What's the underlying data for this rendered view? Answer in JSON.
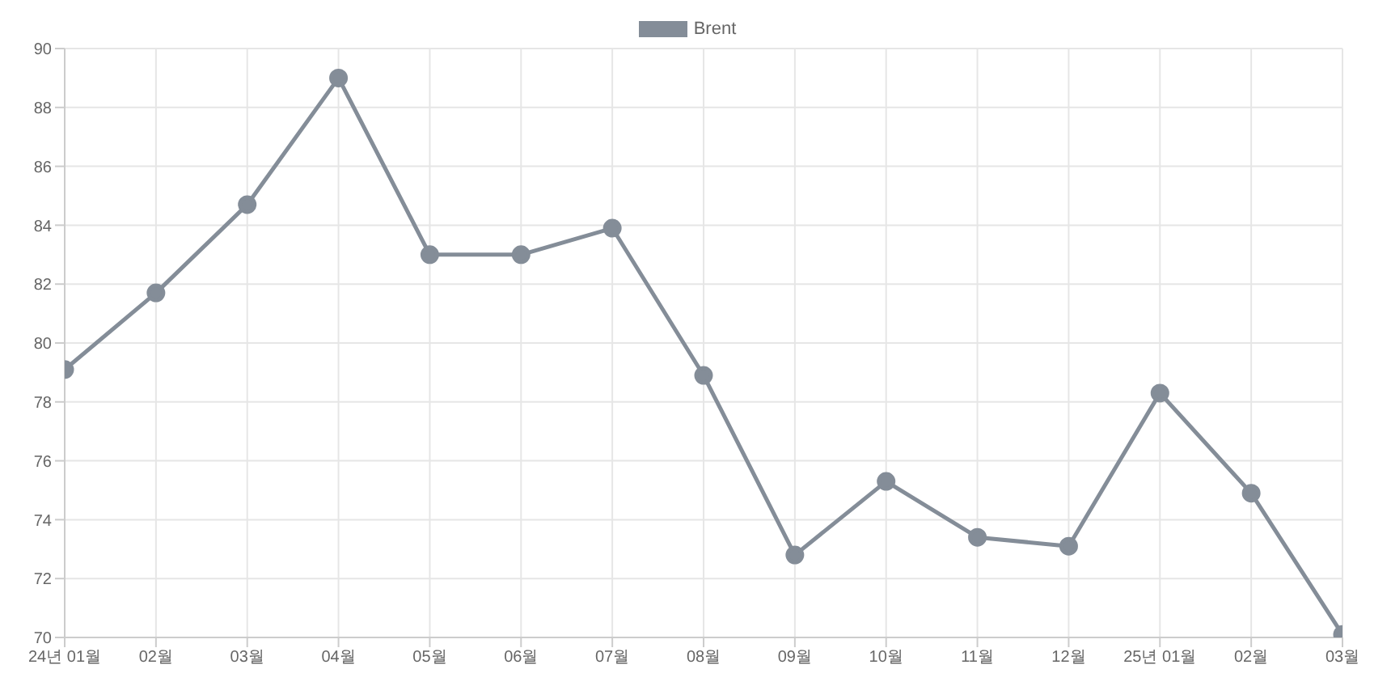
{
  "chart_data": {
    "type": "line",
    "categories": [
      "24년 01월",
      "02월",
      "03월",
      "04월",
      "05월",
      "06월",
      "07월",
      "08월",
      "09월",
      "10월",
      "11월",
      "12월",
      "25년 01월",
      "02월",
      "03월"
    ],
    "series": [
      {
        "name": "Brent",
        "color": "#848d98",
        "values": [
          79.1,
          81.7,
          84.7,
          89.0,
          83.0,
          83.0,
          83.9,
          78.9,
          72.8,
          75.3,
          73.4,
          73.1,
          78.3,
          74.9,
          70.1
        ]
      }
    ],
    "ylim": [
      70,
      90
    ],
    "yticks": [
      70,
      72,
      74,
      76,
      78,
      80,
      82,
      84,
      86,
      88,
      90
    ],
    "grid": true,
    "legend": "top",
    "marker": "circle",
    "line_style": "solid"
  }
}
